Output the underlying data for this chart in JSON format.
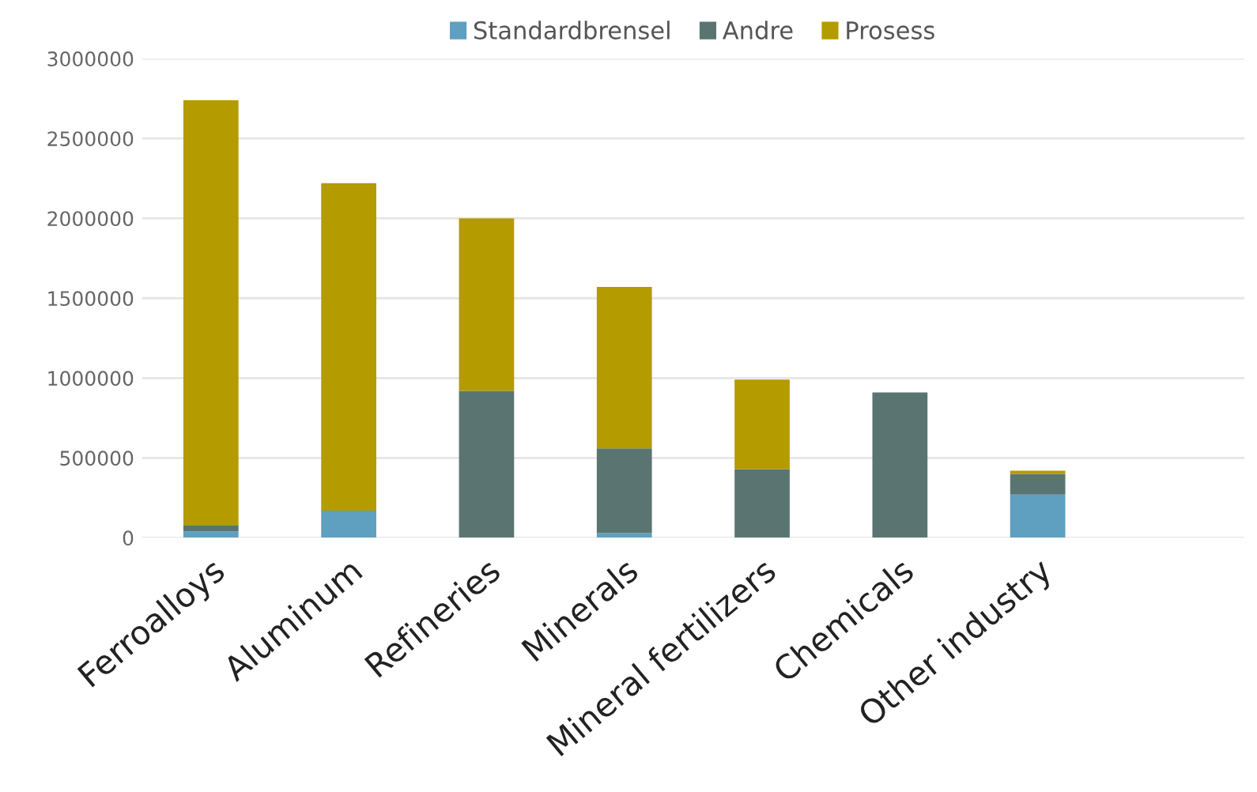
{
  "chart_data": {
    "type": "bar",
    "stacked": true,
    "categories": [
      "Ferroalloys",
      "Aluminum",
      "Refineries",
      "Minerals",
      "Mineral fertilizers",
      "Chemicals",
      "Other industry",
      null
    ],
    "series": [
      {
        "name": "Standardbrensel",
        "color": "#5f9fc0",
        "values": [
          40000,
          170000,
          0,
          30000,
          0,
          0,
          270000,
          null
        ]
      },
      {
        "name": "Andre",
        "color": "#5a7571",
        "values": [
          40000,
          0,
          920000,
          530000,
          430000,
          910000,
          130000,
          null
        ]
      },
      {
        "name": "Prosess",
        "color": "#b39b00",
        "values": [
          2660000,
          2050000,
          1080000,
          1010000,
          560000,
          0,
          20000,
          null
        ]
      }
    ],
    "ylim": [
      0,
      3000000
    ],
    "yticks": [
      0,
      500000,
      1000000,
      1500000,
      2000000,
      2500000,
      3000000
    ],
    "grid": "y",
    "legend": "top"
  }
}
